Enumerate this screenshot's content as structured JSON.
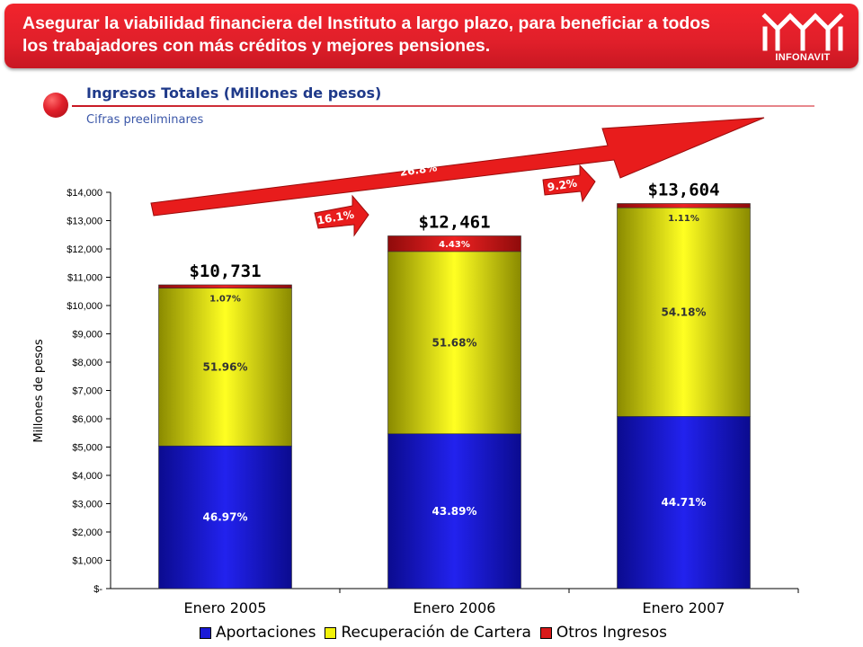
{
  "header": {
    "title": "Asegurar la viabilidad financiera del Instituto a largo plazo, para beneficiar a todos los trabajadores con más créditos y mejores pensiones.",
    "logo_text": "INFONAVIT"
  },
  "section": {
    "title": "Ingresos Totales (Millones de pesos)",
    "subtitle": "Cifras preeliminares"
  },
  "chart_data": {
    "type": "bar",
    "stacked": true,
    "categories": [
      "Enero 2005",
      "Enero 2006",
      "Enero 2007"
    ],
    "ylabel": "Millones de pesos",
    "ylim": [
      0,
      14000
    ],
    "yticks": [
      0,
      1000,
      2000,
      3000,
      4000,
      5000,
      6000,
      7000,
      8000,
      9000,
      10000,
      11000,
      12000,
      13000,
      14000
    ],
    "ytick_labels": [
      "$-",
      "$1,000",
      "$2,000",
      "$3,000",
      "$4,000",
      "$5,000",
      "$6,000",
      "$7,000",
      "$8,000",
      "$9,000",
      "$10,000",
      "$11,000",
      "$12,000",
      "$13,000",
      "$14,000"
    ],
    "totals": [
      10731,
      12461,
      13604
    ],
    "total_labels": [
      "$10,731",
      "$12,461",
      "$13,604"
    ],
    "series": [
      {
        "name": "Aportaciones",
        "color": "#1a1ad6",
        "values": [
          5040,
          5469,
          6082
        ],
        "labels": [
          "46.97%",
          "43.89%",
          "44.71%"
        ]
      },
      {
        "name": "Recuperación de Cartera",
        "color": "#f2f20a",
        "values": [
          5576,
          6440,
          7371
        ],
        "labels": [
          "51.96%",
          "51.68%",
          "54.18%"
        ]
      },
      {
        "name": "Otros Ingresos",
        "color": "#d81a1a",
        "values": [
          115,
          552,
          151
        ],
        "labels": [
          "1.07%",
          "4.43%",
          "1.11%"
        ]
      }
    ],
    "growth_annotations": [
      "16.1%",
      "9.2%",
      "26.8%"
    ],
    "legend_position": "bottom"
  }
}
